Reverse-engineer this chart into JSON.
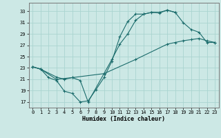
{
  "xlabel": "Humidex (Indice chaleur)",
  "background_color": "#cce8e5",
  "grid_color": "#aad4d0",
  "line_color": "#1a6b6b",
  "xlim": [
    -0.5,
    23.5
  ],
  "ylim": [
    16.0,
    34.5
  ],
  "yticks": [
    17,
    19,
    21,
    23,
    25,
    27,
    29,
    31,
    33
  ],
  "xticks": [
    0,
    1,
    2,
    3,
    4,
    5,
    6,
    7,
    8,
    9,
    10,
    11,
    12,
    13,
    14,
    15,
    16,
    17,
    18,
    19,
    20,
    21,
    22,
    23
  ],
  "line1_x": [
    0,
    1,
    2,
    3,
    4,
    5,
    6,
    7,
    8,
    9,
    10,
    11,
    12,
    13,
    14,
    15,
    16,
    17,
    18
  ],
  "line1_y": [
    23.2,
    22.8,
    21.3,
    20.8,
    18.9,
    18.5,
    17.0,
    17.2,
    19.2,
    21.3,
    24.2,
    28.5,
    31.2,
    32.5,
    32.5,
    32.8,
    32.7,
    33.2,
    32.8
  ],
  "line2_x": [
    0,
    1,
    3,
    4,
    5,
    6,
    7,
    9,
    10,
    11,
    12,
    13,
    14,
    15,
    16,
    17,
    18,
    19,
    20,
    21,
    22,
    23
  ],
  "line2_y": [
    23.2,
    22.8,
    21.4,
    21.0,
    21.3,
    20.8,
    17.0,
    22.0,
    24.5,
    27.2,
    29.0,
    31.4,
    32.5,
    32.8,
    32.8,
    33.2,
    32.8,
    31.0,
    29.8,
    29.3,
    27.5,
    27.5
  ],
  "line3_x": [
    0,
    1,
    3,
    5,
    9,
    13,
    17,
    18,
    19,
    20,
    21,
    22,
    23
  ],
  "line3_y": [
    23.2,
    22.8,
    21.0,
    21.3,
    22.0,
    24.5,
    27.2,
    27.5,
    27.8,
    28.0,
    28.2,
    27.8,
    27.5
  ],
  "tick_fontsize": 5.0,
  "xlabel_fontsize": 6.0,
  "linewidth": 0.8,
  "markersize": 2.2
}
